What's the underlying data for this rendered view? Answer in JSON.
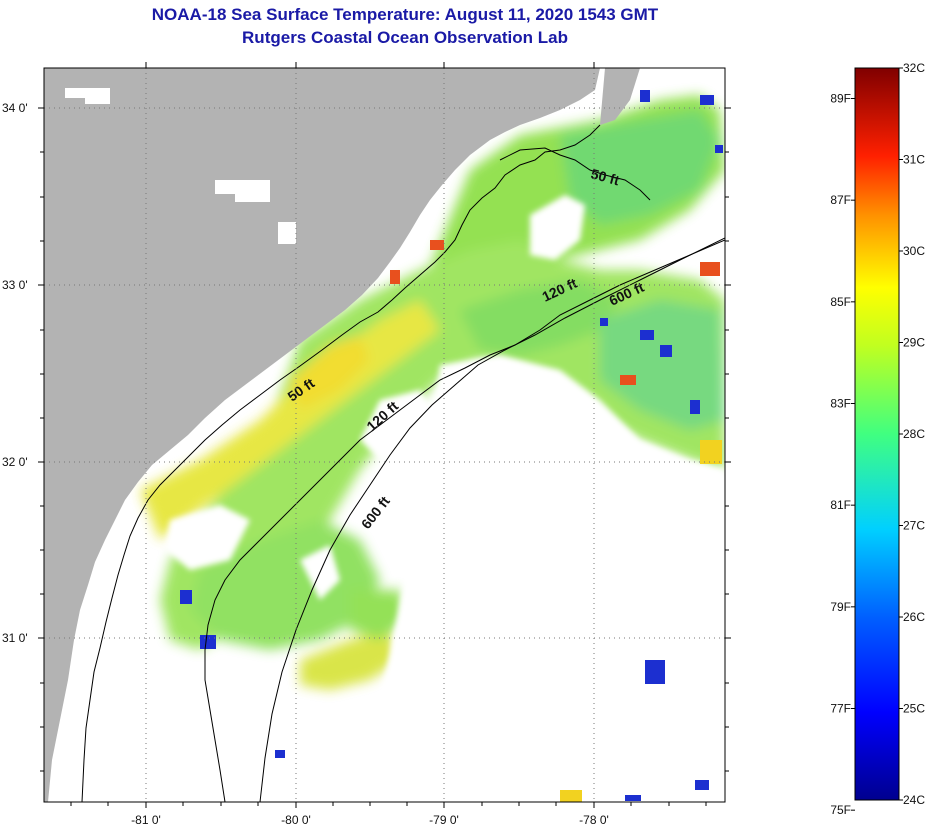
{
  "title": {
    "line1": "NOAA-18 Sea Surface Temperature:  August 11, 2020 1543 GMT",
    "line2": "Rutgers Coastal Ocean Observation Lab"
  },
  "axes": {
    "lat_ticks": [
      "34 0'",
      "33 0'",
      "32 0'",
      "31 0'"
    ],
    "lon_ticks": [
      "-81 0'",
      "-80 0'",
      "-79 0'",
      "-78 0'"
    ]
  },
  "contours": [
    {
      "label": "50 ft",
      "depth_ft": 50
    },
    {
      "label": "120 ft",
      "depth_ft": 120
    },
    {
      "label": "600 ft",
      "depth_ft": 600
    },
    {
      "label": "50 ft",
      "depth_ft": 50
    },
    {
      "label": "120 ft",
      "depth_ft": 120
    },
    {
      "label": "600 ft",
      "depth_ft": 600
    }
  ],
  "colorbar": {
    "celsius": [
      "32C",
      "31C",
      "30C",
      "29C",
      "28C",
      "27C",
      "26C",
      "25C",
      "24C"
    ],
    "fahrenheit": [
      "89F",
      "87F",
      "85F",
      "83F",
      "81F",
      "79F",
      "77F",
      "75F"
    ],
    "min_c": 24,
    "max_c": 32
  },
  "colors": {
    "land": "#b3b3b3",
    "title": "#1a1aa6"
  }
}
